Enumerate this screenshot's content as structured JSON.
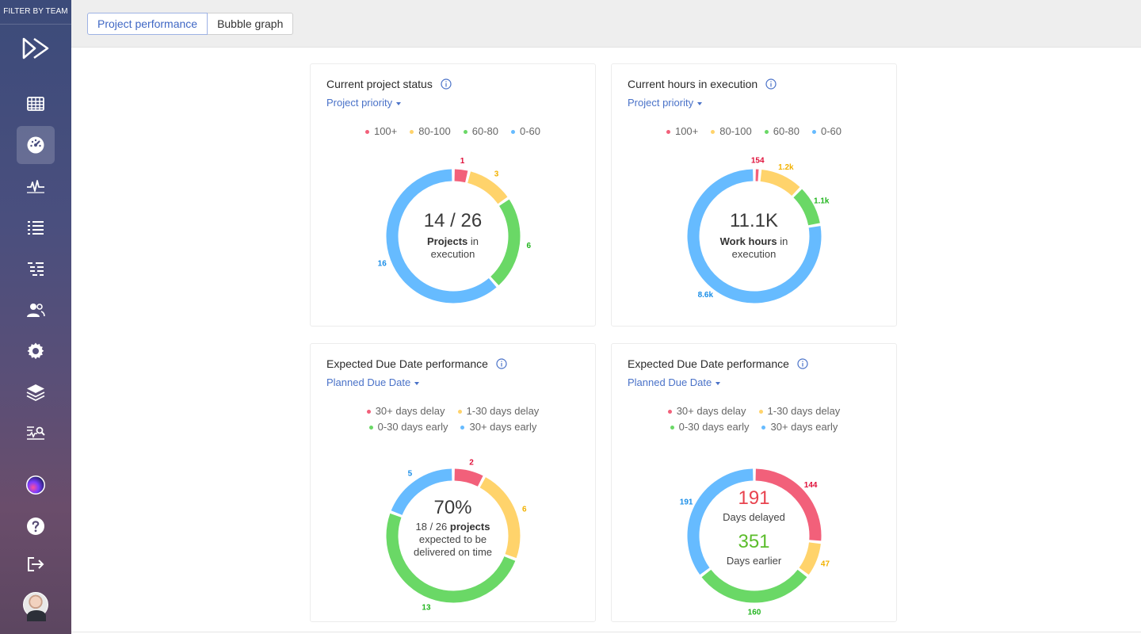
{
  "sidebar": {
    "filter_label": "FILTER BY TEAM",
    "items": [
      {
        "name": "calendar-grid-icon"
      },
      {
        "name": "dashboard-gauge-icon",
        "active": true
      },
      {
        "name": "activity-pulse-icon"
      },
      {
        "name": "list-icon"
      },
      {
        "name": "tree-list-icon"
      },
      {
        "name": "users-icon"
      },
      {
        "name": "gear-icon"
      },
      {
        "name": "layers-icon"
      },
      {
        "name": "analytics-search-icon"
      },
      {
        "name": "app-orb-icon"
      },
      {
        "name": "help-icon"
      },
      {
        "name": "logout-icon"
      }
    ]
  },
  "tabs": [
    {
      "label": "Project performance",
      "active": true
    },
    {
      "label": "Bubble graph",
      "active": false
    }
  ],
  "colors": {
    "red": "#f2607a",
    "yellow": "#ffd36b",
    "green": "#6ad866",
    "blue": "#66bbff",
    "link": "#4a72c8"
  },
  "cards": [
    {
      "title": "Current project status",
      "dropdown": "Project priority",
      "legend": [
        [
          "100+",
          "80-100",
          "60-80",
          "0-60"
        ]
      ],
      "center": {
        "big": "14 / 26",
        "bold": "Projects",
        "rest1": " in",
        "line2": "execution"
      },
      "chart_data": {
        "type": "pie",
        "labels": [
          "100+",
          "80-100",
          "60-80",
          "0-60"
        ],
        "values": [
          1,
          3,
          6,
          16
        ],
        "value_labels": [
          "1",
          "3",
          "6",
          "16"
        ]
      }
    },
    {
      "title": "Current hours in execution",
      "dropdown": "Project priority",
      "legend": [
        [
          "100+",
          "80-100",
          "60-80",
          "0-60"
        ]
      ],
      "center": {
        "big": "11.1K",
        "bold": "Work hours",
        "rest1": " in",
        "line2": "execution"
      },
      "chart_data": {
        "type": "pie",
        "labels": [
          "100+",
          "80-100",
          "60-80",
          "0-60"
        ],
        "values": [
          154,
          1200,
          1100,
          8600
        ],
        "value_labels": [
          "154",
          "1.2k",
          "1.1k",
          "8.6k"
        ]
      }
    },
    {
      "title": "Expected Due Date performance",
      "dropdown": "Planned Due Date",
      "legend": [
        [
          "30+ days delay",
          "1-30 days delay"
        ],
        [
          "0-30 days early",
          "30+ days early"
        ]
      ],
      "center": {
        "big": "70%",
        "line1a": "18 / 26 ",
        "bold": "projects",
        "line2": "expected to be",
        "line3": "delivered on time"
      },
      "chart_data": {
        "type": "pie",
        "labels": [
          "30+ days delay",
          "1-30 days delay",
          "0-30 days early",
          "30+ days early"
        ],
        "values": [
          2,
          6,
          13,
          5
        ],
        "value_labels": [
          "2",
          "6",
          "13",
          "5"
        ]
      }
    },
    {
      "title": "Expected Due Date performance",
      "dropdown": "Planned Due Date",
      "legend": [
        [
          "30+ days delay",
          "1-30 days delay"
        ],
        [
          "0-30 days early",
          "30+ days early"
        ]
      ],
      "center": {
        "big_red": "191",
        "label1": "Days delayed",
        "big_green": "351",
        "label2": "Days earlier"
      },
      "chart_data": {
        "type": "pie",
        "labels": [
          "30+ days delay",
          "1-30 days delay",
          "0-30 days early",
          "30+ days early"
        ],
        "values": [
          144,
          47,
          160,
          191
        ],
        "value_labels": [
          "144",
          "47",
          "160",
          "191"
        ]
      }
    }
  ]
}
